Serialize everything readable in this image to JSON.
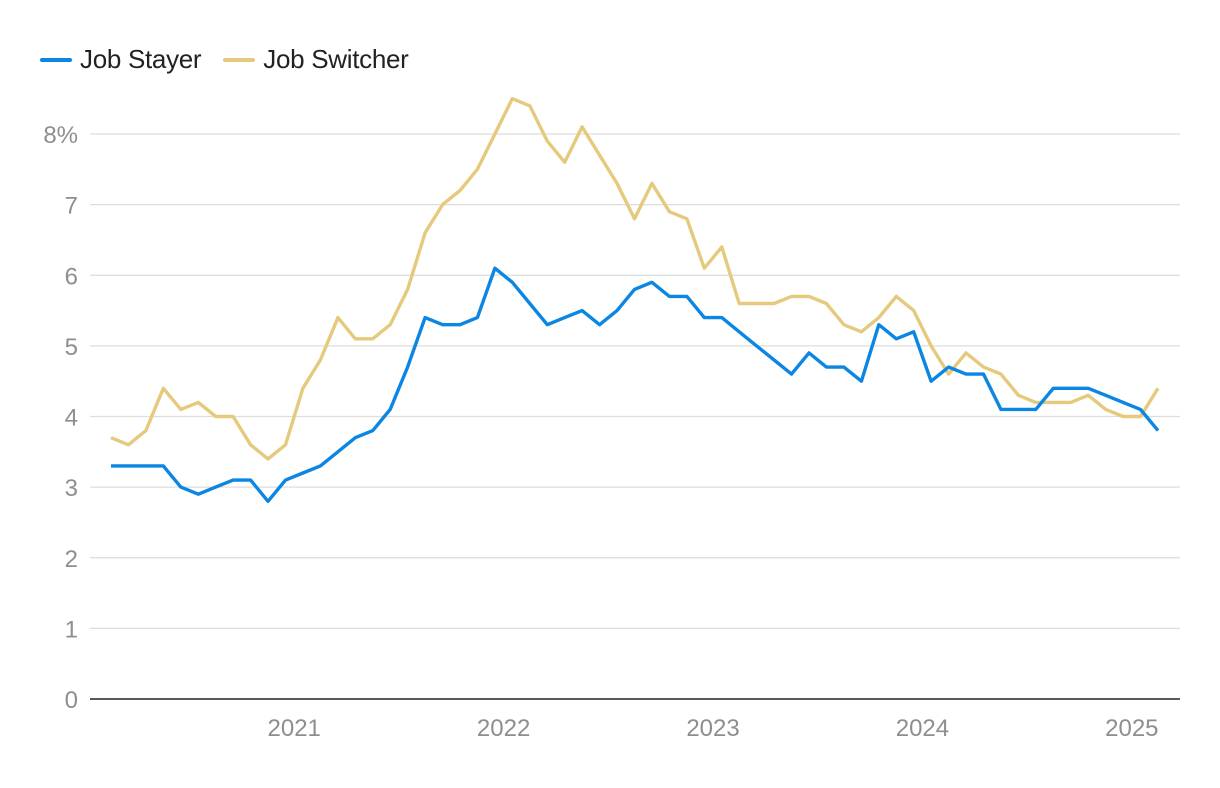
{
  "chart_data": {
    "type": "line",
    "x_start": "2020-08",
    "x_step": "monthly",
    "ylim": [
      0,
      8
    ],
    "y_ticks": [
      0,
      1,
      2,
      3,
      4,
      5,
      6,
      7,
      8
    ],
    "y_tick_labels": [
      "0",
      "1",
      "2",
      "3",
      "4",
      "5",
      "6",
      "7",
      "8%"
    ],
    "x_tick_labels": [
      "2021",
      "2022",
      "2023",
      "2024",
      "2025"
    ],
    "grid": "horizontal",
    "legend_position": "top-left",
    "series": [
      {
        "name": "Job Stayer",
        "color": "#0b86e3",
        "values": [
          3.3,
          3.3,
          3.3,
          3.3,
          3.0,
          2.9,
          3.0,
          3.1,
          3.1,
          2.8,
          3.1,
          3.2,
          3.3,
          3.5,
          3.7,
          3.8,
          4.1,
          4.7,
          5.4,
          5.3,
          5.3,
          5.4,
          6.1,
          5.9,
          5.6,
          5.3,
          5.4,
          5.5,
          5.3,
          5.5,
          5.8,
          5.9,
          5.7,
          5.7,
          5.4,
          5.4,
          5.2,
          5.0,
          4.8,
          4.6,
          4.9,
          4.7,
          4.7,
          4.5,
          5.3,
          5.1,
          5.2,
          4.5,
          4.7,
          4.6,
          4.6,
          4.1,
          4.1,
          4.1,
          4.4,
          4.4,
          4.4,
          4.3,
          4.2,
          4.1,
          3.8
        ]
      },
      {
        "name": "Job Switcher",
        "color": "#e5ca7d",
        "values": [
          3.7,
          3.6,
          3.8,
          4.4,
          4.1,
          4.2,
          4.0,
          4.0,
          3.6,
          3.4,
          3.6,
          4.4,
          4.8,
          5.4,
          5.1,
          5.1,
          5.3,
          5.8,
          6.6,
          7.0,
          7.2,
          7.5,
          8.0,
          8.5,
          8.4,
          7.9,
          7.6,
          8.1,
          7.7,
          7.3,
          6.8,
          7.3,
          6.9,
          6.8,
          6.1,
          6.4,
          5.6,
          5.6,
          5.6,
          5.7,
          5.7,
          5.6,
          5.3,
          5.2,
          5.4,
          5.7,
          5.5,
          5.0,
          4.6,
          4.9,
          4.7,
          4.6,
          4.3,
          4.2,
          4.2,
          4.2,
          4.3,
          4.1,
          4.0,
          4.0,
          4.4
        ]
      }
    ]
  }
}
